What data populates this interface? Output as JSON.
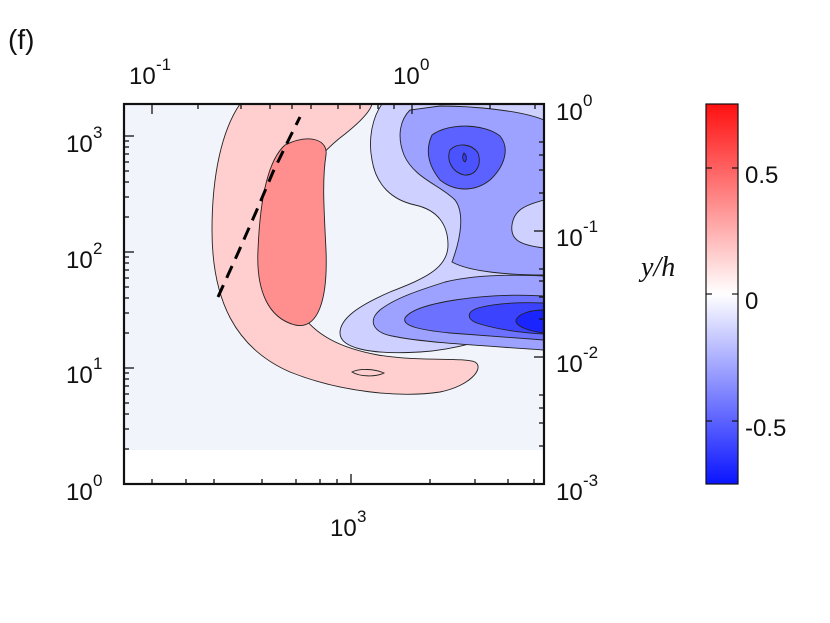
{
  "panel_label": "(f)",
  "colors": {
    "cmap_neg": "#0a14ff",
    "cmap_mid": "#ffffff",
    "cmap_pos": "#ff1010",
    "background_fill": "#f2f4fc",
    "contour_line": "#222222",
    "dashed_line": "#000000"
  },
  "chart_data": {
    "type": "heatmap",
    "title": "",
    "grid": false,
    "axes": {
      "left": {
        "scale": "log",
        "range": [
          1,
          1800
        ],
        "ticks": [
          {
            "base": "10",
            "exp": "0"
          },
          {
            "base": "10",
            "exp": "1"
          },
          {
            "base": "10",
            "exp": "2"
          },
          {
            "base": "10",
            "exp": "3"
          }
        ],
        "label": ""
      },
      "bottom": {
        "scale": "log",
        "range": [
          45,
          9000
        ],
        "ticks": [
          {
            "base": "10",
            "exp": "3"
          }
        ],
        "label": ""
      },
      "top": {
        "scale": "log",
        "range": [
          0.045,
          9
        ],
        "ticks": [
          {
            "base": "10",
            "exp": "-1"
          },
          {
            "base": "10",
            "exp": "0"
          }
        ],
        "label": ""
      },
      "right": {
        "scale": "log",
        "range": [
          0.001,
          1
        ],
        "ticks": [
          {
            "base": "10",
            "exp": "-3"
          },
          {
            "base": "10",
            "exp": "-2"
          },
          {
            "base": "10",
            "exp": "-1"
          },
          {
            "base": "10",
            "exp": "0"
          }
        ],
        "label": ""
      }
    },
    "colorbar": {
      "label": "y/h",
      "range": [
        -0.75,
        0.75
      ],
      "ticks": [
        "0.5",
        "0",
        "-0.5"
      ]
    },
    "contour_regions": [
      {
        "name": "positive outer band",
        "level": 0.15
      },
      {
        "name": "positive core",
        "level": 0.35
      },
      {
        "name": "negative upper lobe 1",
        "level": -0.15
      },
      {
        "name": "negative upper lobe 2",
        "level": -0.3
      },
      {
        "name": "negative upper peak",
        "level": -0.5
      },
      {
        "name": "negative lower lobe 1",
        "level": -0.3
      },
      {
        "name": "negative lower lobe 2",
        "level": -0.45
      },
      {
        "name": "negative lower lobe 3",
        "level": -0.6
      },
      {
        "name": "negative lower peak",
        "level": -0.7
      }
    ],
    "dashed_line": {
      "x": [
        120,
        430
      ],
      "y": [
        40,
        1500
      ]
    }
  }
}
